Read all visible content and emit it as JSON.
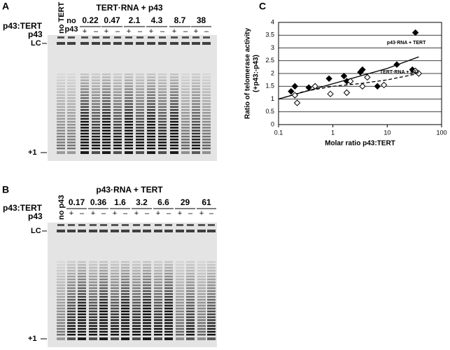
{
  "panel_labels": [
    "A",
    "B",
    "C"
  ],
  "gel_a": {
    "title": "TERT·RNA + p43",
    "row_labels": [
      "p43:TERT",
      "p43"
    ],
    "lane_labels": [
      "no TERT",
      [
        "no",
        "p43"
      ]
    ],
    "ratios": [
      "0.22",
      "0.47",
      "2.1",
      "4.3",
      "8.7",
      "38"
    ],
    "signs": [
      "+",
      "–"
    ],
    "markers": [
      "LC",
      "+1"
    ]
  },
  "gel_b": {
    "title": "p43·RNA + TERT",
    "row_labels": [
      "p43:TERT",
      "p43"
    ],
    "lane_labels": [
      "no p43"
    ],
    "ratios": [
      "0.17",
      "0.36",
      "1.6",
      "3.2",
      "6.6",
      "29",
      "61"
    ],
    "signs": [
      "+",
      "–"
    ],
    "markers": [
      "LC",
      "+1"
    ]
  },
  "chart_data": {
    "type": "scatter",
    "xlabel": "Molar ratio p43:TERT",
    "ylabel": [
      "Ratio of telomerase activity",
      "(+p43:-p43)"
    ],
    "xscale": "log",
    "xlim": [
      0.1,
      100
    ],
    "xticks": [
      0.1,
      1,
      10,
      100
    ],
    "ylim": [
      0,
      4
    ],
    "yticks": [
      0,
      0.5,
      1,
      1.5,
      2,
      2.5,
      3,
      3.5,
      4
    ],
    "grid": true,
    "series": [
      {
        "name": "p43·RNA + TERT",
        "color": "#000000",
        "marker": "filled",
        "line": "solid",
        "x": [
          0.17,
          0.2,
          0.36,
          0.85,
          1.6,
          1.8,
          3.2,
          3.5,
          6.6,
          15,
          29,
          33
        ],
        "values": [
          1.3,
          1.5,
          1.45,
          1.8,
          1.9,
          1.7,
          2.05,
          2.15,
          1.5,
          2.35,
          2.15,
          3.6
        ],
        "fit": {
          "x": [
            0.1,
            1,
            10,
            38
          ],
          "y": [
            1,
            1.6,
            2.2,
            2.65
          ]
        }
      },
      {
        "name": "TERT·RNA + p43",
        "color": "#000000",
        "marker": "open",
        "line": "dashed",
        "x": [
          0.2,
          0.22,
          0.47,
          0.9,
          1.8,
          2.1,
          3.5,
          4.3,
          8.7,
          33,
          38
        ],
        "values": [
          1.15,
          0.85,
          1.5,
          1.2,
          1.25,
          1.7,
          1.5,
          1.85,
          1.55,
          2.1,
          2.0
        ],
        "fit": {
          "x": [
            0.1,
            0.3,
            1,
            3,
            10,
            38
          ],
          "y": [
            1,
            1.3,
            1.5,
            1.6,
            1.75,
            2.0
          ]
        }
      }
    ]
  }
}
